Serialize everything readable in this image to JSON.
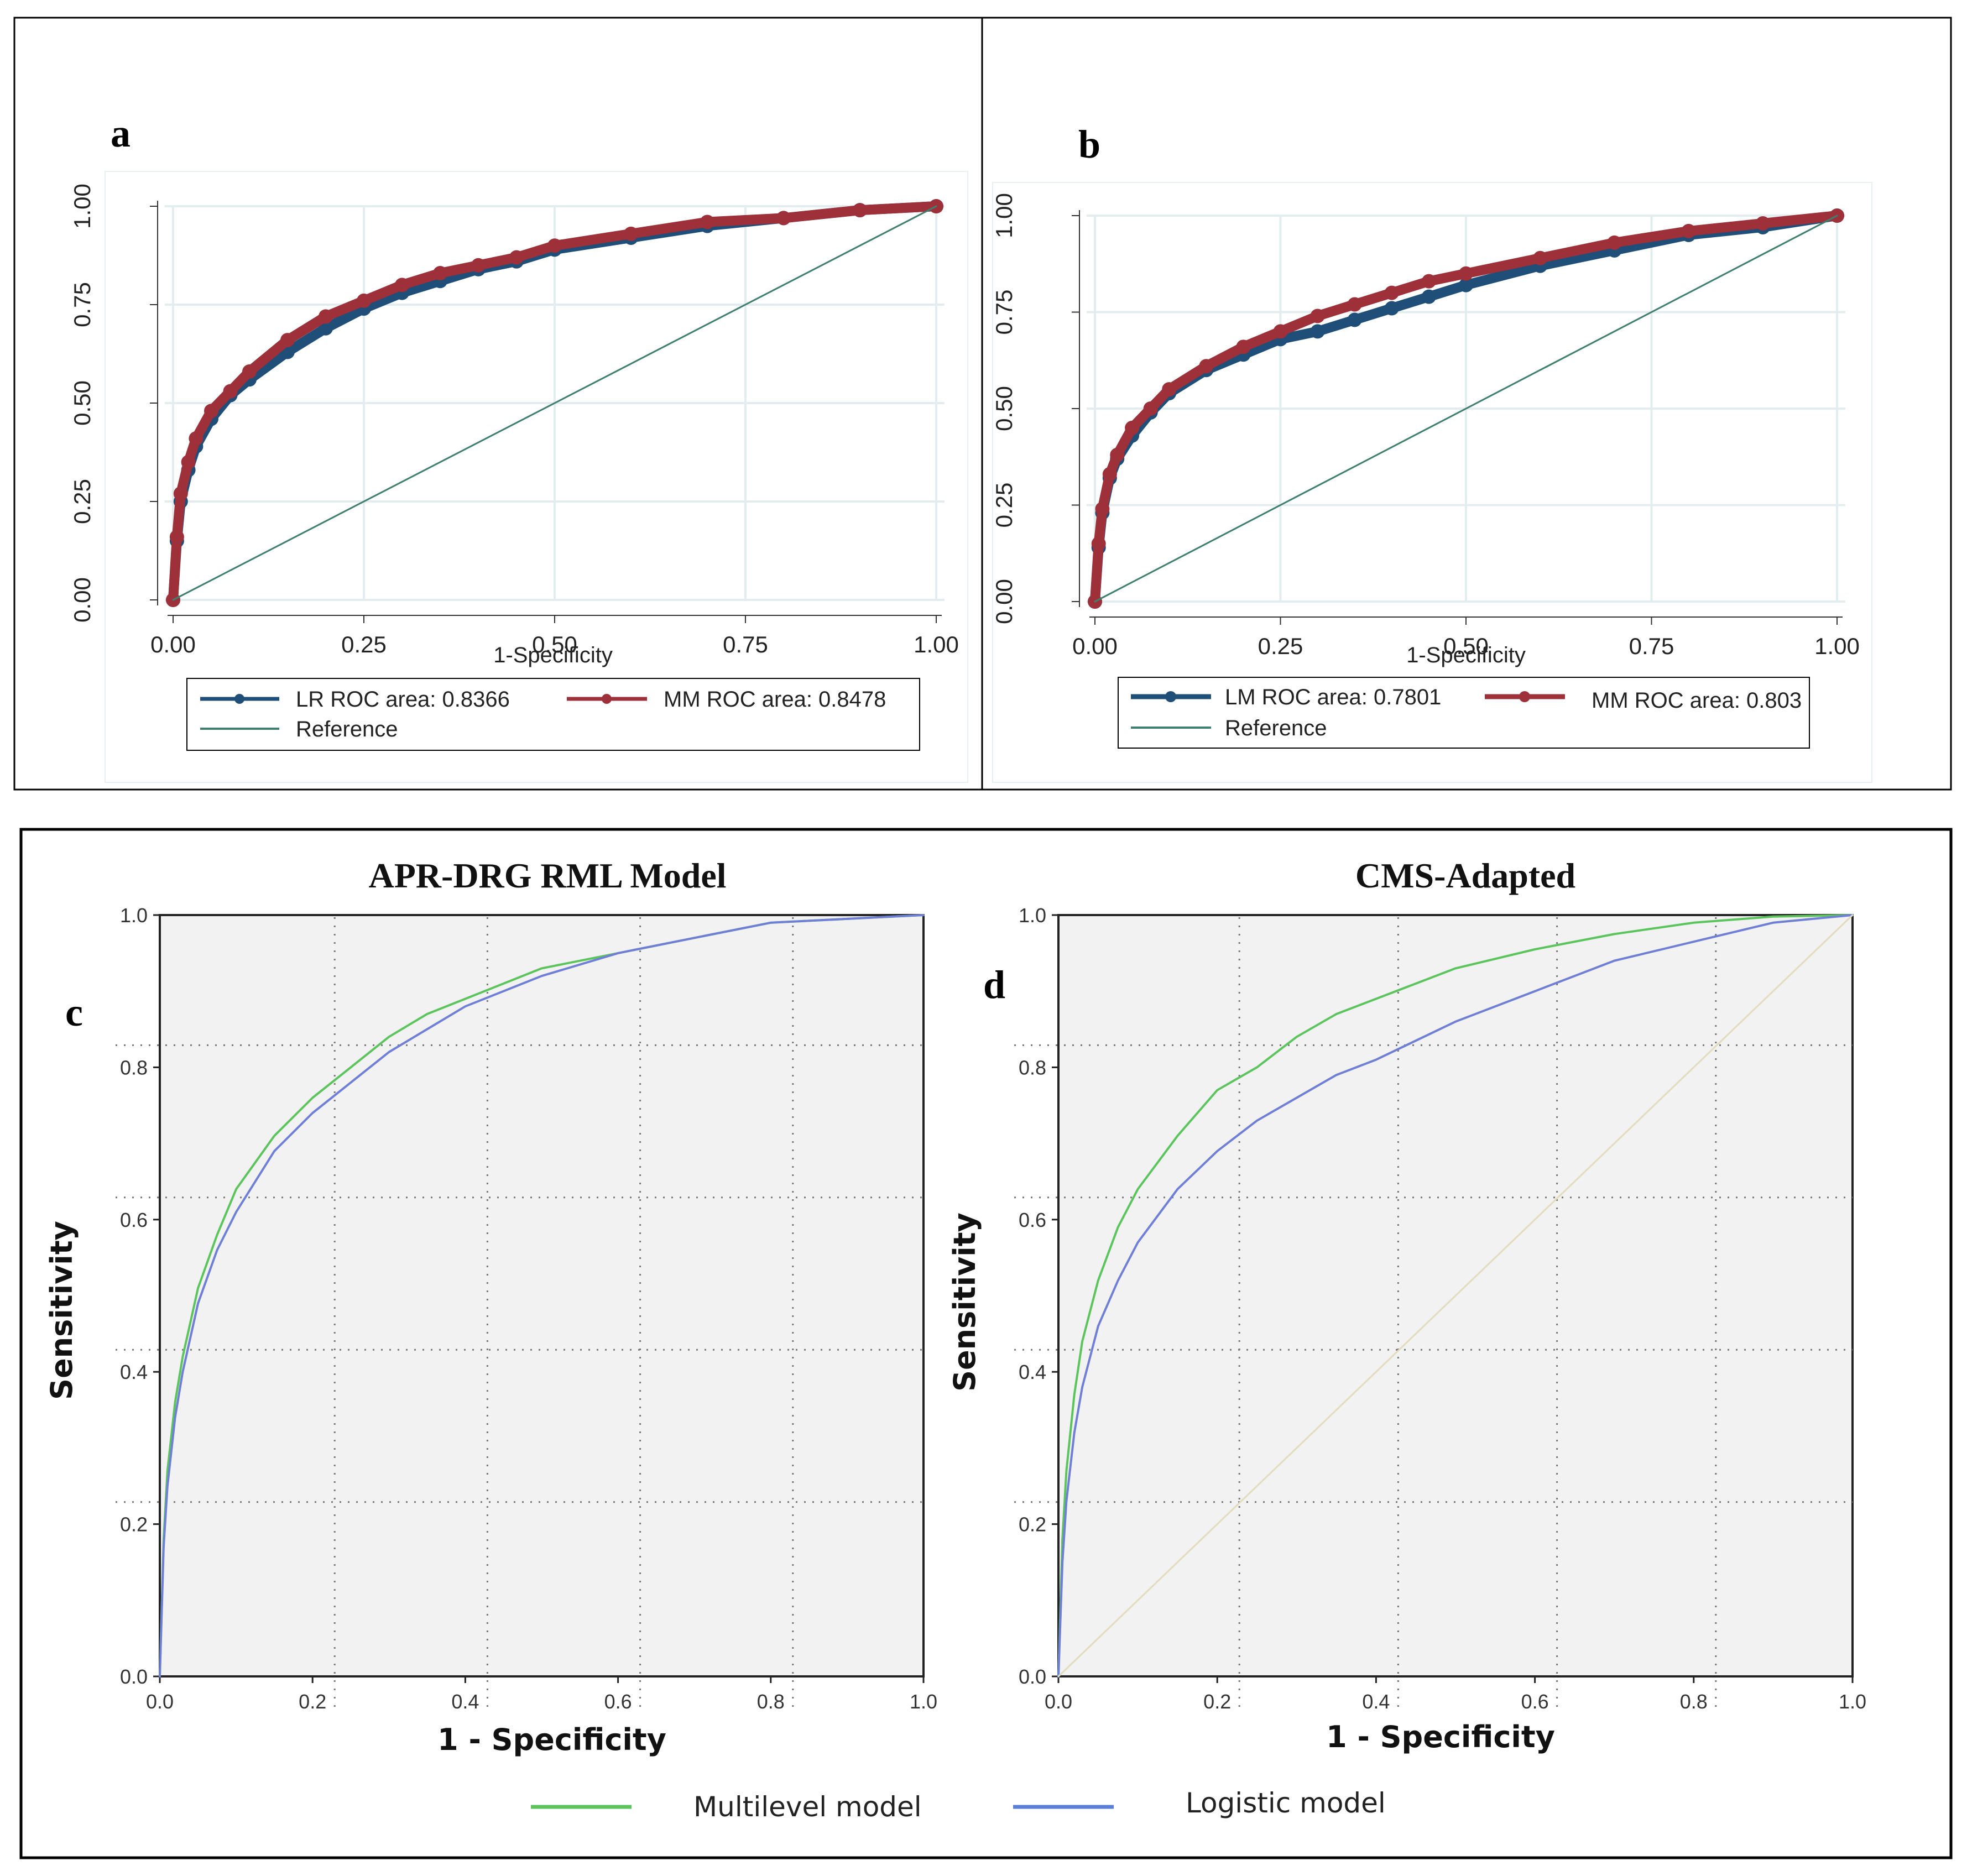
{
  "colors": {
    "lr_blue": "#1f4e79",
    "mm_red": "#9e3039",
    "reference": "#3f7f6f",
    "multilevel_green": "#5cc45c",
    "logistic_blue": "#6f7fd6",
    "diag_tan": "#e2dcbc"
  },
  "chart_data": [
    {
      "panel": "a",
      "type": "line",
      "xlabel": "1-Specificity",
      "ylabel": "",
      "xlim": [
        0,
        1
      ],
      "ylim": [
        0,
        1
      ],
      "x_ticks": [
        "0.00",
        "0.25",
        "0.50",
        "0.75",
        "1.00"
      ],
      "y_ticks": [
        "0.00",
        "0.25",
        "0.50",
        "0.75",
        "1.00"
      ],
      "grid": true,
      "legend_position": "bottom",
      "series": [
        {
          "name": "LR  ROC area: 0.8366",
          "color": "#1f4e79",
          "markers": true,
          "x": [
            0,
            0.005,
            0.01,
            0.02,
            0.03,
            0.05,
            0.075,
            0.1,
            0.15,
            0.2,
            0.25,
            0.3,
            0.35,
            0.4,
            0.45,
            0.5,
            0.6,
            0.7,
            0.8,
            0.9,
            1.0
          ],
          "y": [
            0,
            0.15,
            0.25,
            0.33,
            0.39,
            0.46,
            0.52,
            0.56,
            0.63,
            0.69,
            0.74,
            0.78,
            0.81,
            0.84,
            0.86,
            0.89,
            0.92,
            0.95,
            0.97,
            0.99,
            1.0
          ]
        },
        {
          "name": "MM  ROC area: 0.8478",
          "color": "#9e3039",
          "markers": true,
          "x": [
            0,
            0.005,
            0.01,
            0.02,
            0.03,
            0.05,
            0.075,
            0.1,
            0.15,
            0.2,
            0.25,
            0.3,
            0.35,
            0.4,
            0.45,
            0.5,
            0.6,
            0.7,
            0.8,
            0.9,
            1.0
          ],
          "y": [
            0,
            0.16,
            0.27,
            0.35,
            0.41,
            0.48,
            0.53,
            0.58,
            0.66,
            0.72,
            0.76,
            0.8,
            0.83,
            0.85,
            0.87,
            0.9,
            0.93,
            0.96,
            0.97,
            0.99,
            1.0
          ]
        },
        {
          "name": "Reference",
          "color": "#3f7f6f",
          "markers": false,
          "x": [
            0,
            1
          ],
          "y": [
            0,
            1
          ]
        }
      ]
    },
    {
      "panel": "b",
      "type": "line",
      "xlabel": "1-Specificity",
      "ylabel": "",
      "xlim": [
        0,
        1
      ],
      "ylim": [
        0,
        1
      ],
      "x_ticks": [
        "0.00",
        "0.25",
        "0.50",
        "0.75",
        "1.00"
      ],
      "y_ticks": [
        "0.00",
        "0.25",
        "0.50",
        "0.75",
        "1.00"
      ],
      "grid": true,
      "legend_position": "bottom",
      "series": [
        {
          "name": "LM ROC area: 0.7801",
          "color": "#1f4e79",
          "markers": true,
          "x": [
            0,
            0.005,
            0.01,
            0.02,
            0.03,
            0.05,
            0.075,
            0.1,
            0.15,
            0.2,
            0.25,
            0.3,
            0.35,
            0.4,
            0.45,
            0.5,
            0.6,
            0.7,
            0.8,
            0.9,
            1.0
          ],
          "y": [
            0,
            0.14,
            0.23,
            0.32,
            0.37,
            0.43,
            0.49,
            0.54,
            0.6,
            0.64,
            0.68,
            0.7,
            0.73,
            0.76,
            0.79,
            0.82,
            0.87,
            0.91,
            0.95,
            0.97,
            1.0
          ]
        },
        {
          "name": "MM ROC area: 0.803",
          "color": "#9e3039",
          "markers": true,
          "x": [
            0,
            0.005,
            0.01,
            0.02,
            0.03,
            0.05,
            0.075,
            0.1,
            0.15,
            0.2,
            0.25,
            0.3,
            0.35,
            0.4,
            0.45,
            0.5,
            0.6,
            0.7,
            0.8,
            0.9,
            1.0
          ],
          "y": [
            0,
            0.15,
            0.24,
            0.33,
            0.38,
            0.45,
            0.5,
            0.55,
            0.61,
            0.66,
            0.7,
            0.74,
            0.77,
            0.8,
            0.83,
            0.85,
            0.89,
            0.93,
            0.96,
            0.98,
            1.0
          ]
        },
        {
          "name": "Reference",
          "color": "#3f7f6f",
          "markers": false,
          "x": [
            0,
            1
          ],
          "y": [
            0,
            1
          ]
        }
      ]
    },
    {
      "panel": "c",
      "type": "line",
      "title": "APR-DRG RML Model",
      "xlabel": "1 - Specificity",
      "ylabel": "Sensitivity",
      "xlim": [
        0,
        1
      ],
      "ylim": [
        0,
        1
      ],
      "x_ticks": [
        "0.0",
        "0.2",
        "0.4",
        "0.6",
        "0.8",
        "1.0"
      ],
      "y_ticks": [
        "0.0",
        "0.2",
        "0.4",
        "0.6",
        "0.8",
        "1.0"
      ],
      "grid": true,
      "series": [
        {
          "color": "#5cc45c",
          "x": [
            0,
            0.005,
            0.01,
            0.02,
            0.03,
            0.05,
            0.075,
            0.1,
            0.15,
            0.2,
            0.25,
            0.3,
            0.35,
            0.4,
            0.5,
            0.6,
            0.7,
            0.8,
            0.9,
            1.0
          ],
          "y": [
            0,
            0.18,
            0.27,
            0.36,
            0.42,
            0.51,
            0.58,
            0.64,
            0.71,
            0.76,
            0.8,
            0.84,
            0.87,
            0.89,
            0.93,
            0.95,
            0.97,
            0.99,
            0.995,
            1.0
          ]
        },
        {
          "color": "#6f7fd6",
          "x": [
            0,
            0.005,
            0.01,
            0.02,
            0.03,
            0.05,
            0.075,
            0.1,
            0.15,
            0.2,
            0.25,
            0.3,
            0.35,
            0.4,
            0.5,
            0.6,
            0.7,
            0.8,
            0.9,
            1.0
          ],
          "y": [
            0,
            0.17,
            0.25,
            0.34,
            0.4,
            0.49,
            0.56,
            0.61,
            0.69,
            0.74,
            0.78,
            0.82,
            0.85,
            0.88,
            0.92,
            0.95,
            0.97,
            0.99,
            0.995,
            1.0
          ]
        }
      ]
    },
    {
      "panel": "d",
      "type": "line",
      "title": "CMS-Adapted",
      "xlabel": "1 - Specificity",
      "ylabel": "Sensitivity",
      "xlim": [
        0,
        1
      ],
      "ylim": [
        0,
        1
      ],
      "x_ticks": [
        "0.0",
        "0.2",
        "0.4",
        "0.6",
        "0.8",
        "1.0"
      ],
      "y_ticks": [
        "0.0",
        "0.2",
        "0.4",
        "0.6",
        "0.8",
        "1.0"
      ],
      "grid": true,
      "series": [
        {
          "color": "#5cc45c",
          "x": [
            0,
            0.005,
            0.01,
            0.02,
            0.03,
            0.05,
            0.075,
            0.1,
            0.15,
            0.2,
            0.25,
            0.3,
            0.35,
            0.4,
            0.5,
            0.6,
            0.7,
            0.8,
            0.9,
            1.0
          ],
          "y": [
            0,
            0.18,
            0.27,
            0.37,
            0.44,
            0.52,
            0.59,
            0.64,
            0.71,
            0.77,
            0.8,
            0.84,
            0.87,
            0.89,
            0.93,
            0.955,
            0.975,
            0.99,
            0.998,
            1.0
          ]
        },
        {
          "color": "#6f7fd6",
          "x": [
            0,
            0.005,
            0.01,
            0.02,
            0.03,
            0.05,
            0.075,
            0.1,
            0.15,
            0.2,
            0.25,
            0.3,
            0.35,
            0.4,
            0.5,
            0.6,
            0.7,
            0.8,
            0.9,
            1.0
          ],
          "y": [
            0,
            0.15,
            0.23,
            0.32,
            0.38,
            0.46,
            0.52,
            0.57,
            0.64,
            0.69,
            0.73,
            0.76,
            0.79,
            0.81,
            0.86,
            0.9,
            0.94,
            0.965,
            0.99,
            1.0
          ]
        },
        {
          "color": "#e2dcbc",
          "x": [
            0,
            1
          ],
          "y": [
            0,
            1
          ]
        }
      ]
    }
  ],
  "panel_labels": {
    "a": "a",
    "b": "b",
    "c": "c",
    "d": "d"
  },
  "legend_ab": {
    "a": {
      "lr": "LR  ROC area: 0.8366",
      "mm": "MM  ROC area: 0.8478",
      "ref": "Reference"
    },
    "b": {
      "lm": "LM ROC area: 0.7801",
      "mm": "MM ROC area: 0.803",
      "ref": "Reference"
    }
  },
  "legend_cd": {
    "multilevel": "Multilevel  model",
    "logistic": "Logistic model"
  }
}
